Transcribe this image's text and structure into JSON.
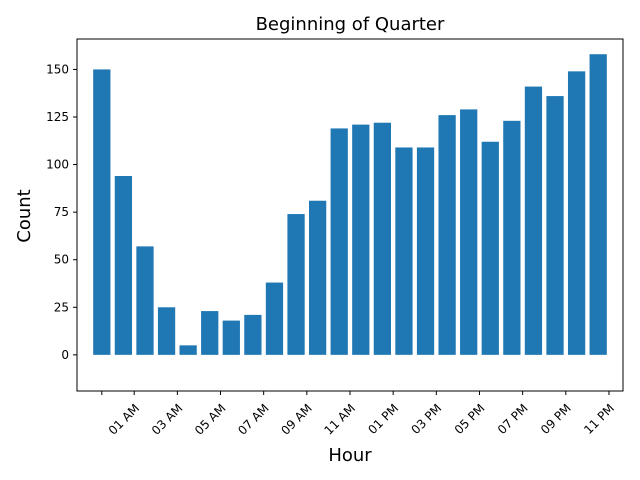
{
  "chart_data": {
    "type": "bar",
    "title": "Beginning of Quarter",
    "xlabel": "Hour",
    "ylabel": "Count",
    "categories": [
      0,
      1,
      2,
      3,
      4,
      5,
      6,
      7,
      8,
      9,
      10,
      11,
      12,
      13,
      14,
      15,
      16,
      17,
      18,
      19,
      20,
      21,
      22,
      23
    ],
    "values": [
      150,
      94,
      57,
      25,
      5,
      23,
      18,
      21,
      38,
      74,
      81,
      119,
      121,
      122,
      109,
      109,
      126,
      129,
      112,
      123,
      141,
      136,
      149,
      158
    ],
    "xtick_labels": [
      "",
      "01 AM",
      "03 AM",
      "05 AM",
      "07 AM",
      "09 AM",
      "11 AM",
      "01 PM",
      "03 PM",
      "05 PM",
      "07 PM",
      "09 PM",
      "11 PM"
    ],
    "xtick_positions": [
      0,
      1.5,
      3.5,
      5.5,
      7.5,
      9.5,
      11.5,
      13.5,
      15.5,
      17.5,
      19.5,
      21.5,
      23.5
    ],
    "yticks": [
      0,
      25,
      50,
      75,
      100,
      125,
      150
    ],
    "ylim": [
      -19,
      166
    ],
    "xlim": [
      -1.15,
      24.15
    ],
    "bar_color": "#1f77b4",
    "grid": false,
    "legend": "none"
  }
}
